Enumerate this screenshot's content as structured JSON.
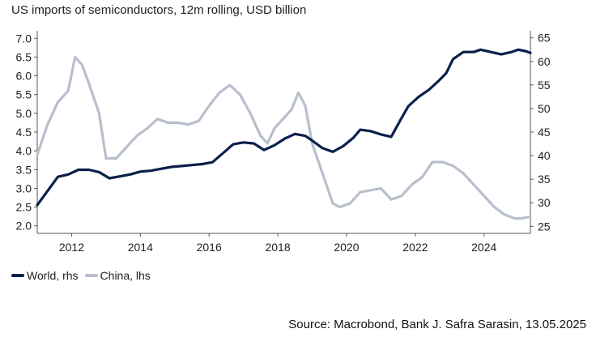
{
  "chart_data": {
    "type": "line",
    "title": "US imports of semiconductors, 12m rolling, USD billion",
    "source": "Source: Macrobond, Bank J. Safra Sarasin, 13.05.2025",
    "xlim": [
      2011.0,
      2025.35
    ],
    "x_ticks": [
      "2012",
      "2014",
      "2016",
      "2018",
      "2020",
      "2022",
      "2024"
    ],
    "left_axis": {
      "ylim": [
        1.8,
        7.2
      ],
      "ticks": [
        "7.0",
        "6.5",
        "6.0",
        "5.5",
        "5.0",
        "4.5",
        "4.0",
        "3.5",
        "3.0",
        "2.5",
        "2.0"
      ]
    },
    "right_axis": {
      "ylim": [
        23.5,
        66.5
      ],
      "ticks": [
        "65",
        "60",
        "55",
        "50",
        "45",
        "40",
        "35",
        "30",
        "25"
      ]
    },
    "colors": {
      "world": "#0b1f4d",
      "china": "#b8bfcc"
    },
    "series": [
      {
        "name": "World, rhs",
        "axis": "right",
        "points": [
          [
            2011.0,
            29.5
          ],
          [
            2011.3,
            32.5
          ],
          [
            2011.6,
            35.5
          ],
          [
            2011.9,
            36.0
          ],
          [
            2012.2,
            37.0
          ],
          [
            2012.5,
            37.0
          ],
          [
            2012.8,
            36.5
          ],
          [
            2013.1,
            35.2
          ],
          [
            2013.4,
            35.6
          ],
          [
            2013.7,
            36.0
          ],
          [
            2014.0,
            36.6
          ],
          [
            2014.3,
            36.8
          ],
          [
            2014.6,
            37.2
          ],
          [
            2014.9,
            37.6
          ],
          [
            2015.2,
            37.8
          ],
          [
            2015.5,
            38.0
          ],
          [
            2015.8,
            38.2
          ],
          [
            2016.1,
            38.6
          ],
          [
            2016.4,
            40.5
          ],
          [
            2016.7,
            42.4
          ],
          [
            2017.0,
            42.8
          ],
          [
            2017.3,
            42.6
          ],
          [
            2017.6,
            41.2
          ],
          [
            2017.9,
            42.2
          ],
          [
            2018.2,
            43.6
          ],
          [
            2018.5,
            44.6
          ],
          [
            2018.8,
            44.2
          ],
          [
            2019.0,
            43.2
          ],
          [
            2019.3,
            41.6
          ],
          [
            2019.6,
            40.8
          ],
          [
            2019.9,
            42.0
          ],
          [
            2020.2,
            43.8
          ],
          [
            2020.4,
            45.5
          ],
          [
            2020.7,
            45.2
          ],
          [
            2021.0,
            44.5
          ],
          [
            2021.3,
            44.0
          ],
          [
            2021.6,
            48.0
          ],
          [
            2021.8,
            50.5
          ],
          [
            2022.1,
            52.5
          ],
          [
            2022.4,
            54.0
          ],
          [
            2022.7,
            56.0
          ],
          [
            2022.9,
            57.5
          ],
          [
            2023.1,
            60.5
          ],
          [
            2023.4,
            62.0
          ],
          [
            2023.7,
            62.0
          ],
          [
            2023.9,
            62.5
          ],
          [
            2024.2,
            62.0
          ],
          [
            2024.5,
            61.5
          ],
          [
            2024.8,
            62.0
          ],
          [
            2025.0,
            62.5
          ],
          [
            2025.2,
            62.2
          ],
          [
            2025.35,
            61.8
          ]
        ]
      },
      {
        "name": "China, lhs",
        "axis": "left",
        "points": [
          [
            2011.0,
            3.9
          ],
          [
            2011.3,
            4.7
          ],
          [
            2011.6,
            5.3
          ],
          [
            2011.9,
            5.6
          ],
          [
            2012.1,
            6.5
          ],
          [
            2012.3,
            6.3
          ],
          [
            2012.5,
            5.8
          ],
          [
            2012.8,
            5.0
          ],
          [
            2013.0,
            3.8
          ],
          [
            2013.3,
            3.8
          ],
          [
            2013.6,
            4.1
          ],
          [
            2013.9,
            4.4
          ],
          [
            2014.2,
            4.6
          ],
          [
            2014.5,
            4.85
          ],
          [
            2014.8,
            4.75
          ],
          [
            2015.1,
            4.75
          ],
          [
            2015.4,
            4.7
          ],
          [
            2015.7,
            4.8
          ],
          [
            2016.0,
            5.2
          ],
          [
            2016.3,
            5.55
          ],
          [
            2016.6,
            5.75
          ],
          [
            2016.9,
            5.5
          ],
          [
            2017.2,
            5.0
          ],
          [
            2017.5,
            4.4
          ],
          [
            2017.7,
            4.2
          ],
          [
            2017.9,
            4.6
          ],
          [
            2018.2,
            4.9
          ],
          [
            2018.4,
            5.1
          ],
          [
            2018.6,
            5.55
          ],
          [
            2018.8,
            5.2
          ],
          [
            2019.0,
            4.2
          ],
          [
            2019.3,
            3.4
          ],
          [
            2019.6,
            2.6
          ],
          [
            2019.8,
            2.5
          ],
          [
            2020.1,
            2.6
          ],
          [
            2020.4,
            2.9
          ],
          [
            2020.7,
            2.95
          ],
          [
            2021.0,
            3.0
          ],
          [
            2021.3,
            2.7
          ],
          [
            2021.6,
            2.8
          ],
          [
            2021.9,
            3.1
          ],
          [
            2022.2,
            3.3
          ],
          [
            2022.5,
            3.7
          ],
          [
            2022.8,
            3.7
          ],
          [
            2023.1,
            3.6
          ],
          [
            2023.4,
            3.4
          ],
          [
            2023.7,
            3.1
          ],
          [
            2024.0,
            2.8
          ],
          [
            2024.3,
            2.5
          ],
          [
            2024.6,
            2.3
          ],
          [
            2024.9,
            2.2
          ],
          [
            2025.1,
            2.2
          ],
          [
            2025.35,
            2.25
          ]
        ]
      }
    ]
  }
}
